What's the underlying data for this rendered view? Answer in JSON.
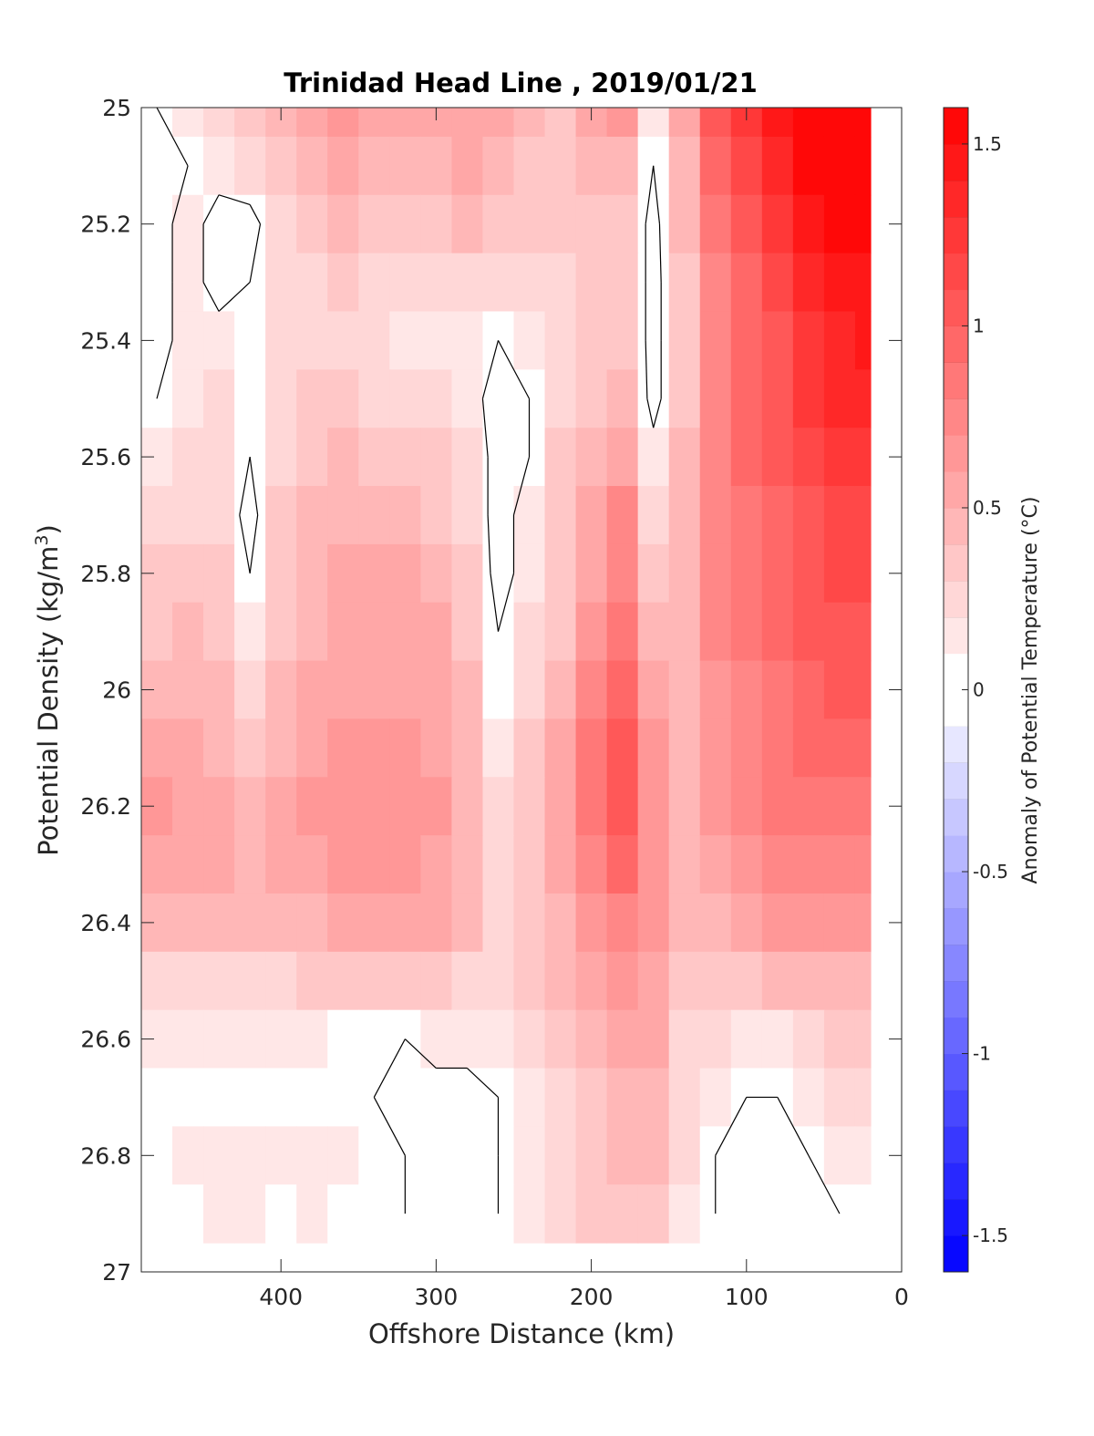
{
  "chart_data": {
    "type": "heatmap",
    "title": "Trinidad Head Line , 2019/01/21",
    "xlabel": "Offshore Distance (km)",
    "ylabel_main": "Potential Density (kg/m",
    "ylabel_sup": "3",
    "ylabel_end": ")",
    "xlim": [
      490,
      0
    ],
    "x_reversed": true,
    "ylim": [
      25,
      27
    ],
    "y_reversed": true,
    "x_ticks": [
      400,
      300,
      200,
      100,
      0
    ],
    "x_tick_labels": [
      "400",
      "300",
      "200",
      "100",
      "0"
    ],
    "y_ticks": [
      25,
      25.2,
      25.4,
      25.6,
      25.8,
      26,
      26.2,
      26.4,
      26.6,
      26.8,
      27
    ],
    "y_tick_labels": [
      "25",
      "25.2",
      "25.4",
      "25.6",
      "25.8",
      "26",
      "26.2",
      "26.4",
      "26.6",
      "26.8",
      "27"
    ],
    "colorbar": {
      "label": "Anomaly of Potential Temperature (°C)",
      "lim": [
        -1.6,
        1.6
      ],
      "step": 0.1,
      "ticks": [
        -1.5,
        -1,
        -0.5,
        0,
        0.5,
        1,
        1.5
      ],
      "tick_labels": [
        "-1.5",
        "-1",
        "-0.5",
        "0",
        "0.5",
        "1",
        "1.5"
      ],
      "low_color": "#0000ff",
      "mid_color": "#ffffff",
      "high_color": "#ff0000"
    },
    "grid_x": [
      480,
      460,
      440,
      420,
      400,
      380,
      360,
      340,
      320,
      300,
      280,
      260,
      240,
      220,
      200,
      180,
      160,
      140,
      120,
      100,
      80,
      60,
      40,
      20
    ],
    "grid_y": [
      25.0,
      25.1,
      25.2,
      25.3,
      25.4,
      25.5,
      25.6,
      25.7,
      25.8,
      25.9,
      26.0,
      26.1,
      26.2,
      26.3,
      26.4,
      26.5,
      26.6,
      26.7,
      26.8,
      26.9
    ],
    "anomaly": [
      [
        0.0,
        0.1,
        0.2,
        0.3,
        0.4,
        0.5,
        0.6,
        0.5,
        0.5,
        0.5,
        0.5,
        0.5,
        0.4,
        0.3,
        0.5,
        0.6,
        0.1,
        0.5,
        1.0,
        1.2,
        1.4,
        1.6,
        1.6,
        1.6
      ],
      [
        -0.1,
        0.0,
        0.1,
        0.2,
        0.3,
        0.4,
        0.5,
        0.4,
        0.4,
        0.4,
        0.5,
        0.4,
        0.3,
        0.3,
        0.4,
        0.4,
        0.0,
        0.4,
        0.9,
        1.1,
        1.3,
        1.5,
        1.6,
        1.6
      ],
      [
        -0.1,
        0.1,
        -0.1,
        -0.1,
        0.2,
        0.3,
        0.4,
        0.3,
        0.3,
        0.3,
        0.4,
        0.3,
        0.3,
        0.3,
        0.3,
        0.3,
        -0.1,
        0.4,
        0.8,
        1.0,
        1.2,
        1.4,
        1.5,
        1.5
      ],
      [
        -0.1,
        0.1,
        -0.1,
        0.0,
        0.2,
        0.2,
        0.3,
        0.2,
        0.2,
        0.2,
        0.2,
        0.2,
        0.2,
        0.2,
        0.3,
        0.3,
        -0.1,
        0.3,
        0.7,
        0.9,
        1.1,
        1.3,
        1.4,
        1.4
      ],
      [
        -0.1,
        0.1,
        0.1,
        0.0,
        0.2,
        0.2,
        0.2,
        0.2,
        0.1,
        0.1,
        0.1,
        0.0,
        0.1,
        0.2,
        0.3,
        0.3,
        -0.1,
        0.3,
        0.7,
        0.9,
        1.0,
        1.2,
        1.3,
        1.4
      ],
      [
        0.0,
        0.1,
        0.2,
        0.0,
        0.2,
        0.3,
        0.3,
        0.2,
        0.2,
        0.2,
        0.1,
        -0.1,
        0.0,
        0.2,
        0.3,
        0.4,
        -0.1,
        0.3,
        0.7,
        0.9,
        1.0,
        1.2,
        1.3,
        1.3
      ],
      [
        0.1,
        0.2,
        0.2,
        0.0,
        0.2,
        0.3,
        0.4,
        0.3,
        0.3,
        0.3,
        0.2,
        -0.1,
        0.0,
        0.3,
        0.4,
        0.5,
        0.1,
        0.4,
        0.7,
        0.9,
        1.0,
        1.1,
        1.2,
        1.2
      ],
      [
        0.2,
        0.2,
        0.2,
        -0.1,
        0.3,
        0.4,
        0.4,
        0.4,
        0.4,
        0.3,
        0.2,
        -0.1,
        0.1,
        0.3,
        0.5,
        0.7,
        0.2,
        0.4,
        0.7,
        0.8,
        0.9,
        1.0,
        1.1,
        1.1
      ],
      [
        0.3,
        0.3,
        0.3,
        0.0,
        0.3,
        0.4,
        0.5,
        0.5,
        0.5,
        0.4,
        0.3,
        -0.1,
        0.1,
        0.3,
        0.5,
        0.7,
        0.3,
        0.4,
        0.7,
        0.8,
        0.9,
        1.0,
        1.1,
        1.1
      ],
      [
        0.3,
        0.4,
        0.3,
        0.1,
        0.3,
        0.4,
        0.5,
        0.5,
        0.5,
        0.5,
        0.3,
        0.0,
        0.2,
        0.3,
        0.6,
        0.8,
        0.4,
        0.4,
        0.7,
        0.8,
        0.9,
        1.0,
        1.0,
        1.0
      ],
      [
        0.4,
        0.4,
        0.4,
        0.2,
        0.4,
        0.5,
        0.5,
        0.5,
        0.5,
        0.5,
        0.4,
        0.0,
        0.2,
        0.4,
        0.7,
        0.9,
        0.5,
        0.4,
        0.6,
        0.7,
        0.8,
        0.9,
        1.0,
        1.0
      ],
      [
        0.5,
        0.5,
        0.4,
        0.3,
        0.4,
        0.5,
        0.6,
        0.6,
        0.6,
        0.5,
        0.4,
        0.1,
        0.3,
        0.5,
        0.8,
        1.0,
        0.6,
        0.4,
        0.6,
        0.7,
        0.8,
        0.9,
        0.9,
        0.9
      ],
      [
        0.6,
        0.5,
        0.5,
        0.4,
        0.5,
        0.6,
        0.6,
        0.6,
        0.6,
        0.6,
        0.4,
        0.2,
        0.3,
        0.5,
        0.8,
        1.0,
        0.6,
        0.4,
        0.6,
        0.7,
        0.8,
        0.8,
        0.8,
        0.8
      ],
      [
        0.5,
        0.5,
        0.5,
        0.4,
        0.5,
        0.5,
        0.6,
        0.6,
        0.6,
        0.5,
        0.4,
        0.2,
        0.3,
        0.5,
        0.7,
        0.9,
        0.6,
        0.4,
        0.5,
        0.6,
        0.7,
        0.7,
        0.7,
        0.7
      ],
      [
        0.4,
        0.4,
        0.4,
        0.4,
        0.4,
        0.4,
        0.5,
        0.5,
        0.5,
        0.5,
        0.4,
        0.2,
        0.3,
        0.4,
        0.6,
        0.7,
        0.6,
        0.4,
        0.4,
        0.5,
        0.6,
        0.6,
        0.6,
        0.6
      ],
      [
        0.2,
        0.2,
        0.2,
        0.2,
        0.2,
        0.3,
        0.3,
        0.3,
        0.3,
        0.3,
        0.2,
        0.2,
        0.3,
        0.4,
        0.5,
        0.6,
        0.5,
        0.3,
        0.3,
        0.3,
        0.4,
        0.4,
        0.4,
        0.4
      ],
      [
        0.1,
        0.1,
        0.1,
        0.1,
        0.1,
        0.1,
        0.0,
        0.0,
        0.0,
        0.1,
        0.1,
        0.1,
        0.2,
        0.3,
        0.4,
        0.5,
        0.5,
        0.2,
        0.2,
        0.1,
        0.1,
        0.2,
        0.3,
        0.3
      ],
      [
        0.0,
        0.0,
        0.0,
        0.0,
        0.0,
        0.0,
        0.0,
        0.0,
        -0.1,
        -0.1,
        -0.1,
        0.0,
        0.1,
        0.2,
        0.3,
        0.4,
        0.4,
        0.2,
        0.1,
        0.0,
        0.0,
        0.1,
        0.2,
        0.2
      ],
      [
        0.0,
        0.1,
        0.1,
        0.1,
        0.1,
        0.1,
        0.1,
        0.0,
        0.0,
        -0.1,
        -0.1,
        0.0,
        0.1,
        0.2,
        0.3,
        0.4,
        0.4,
        0.2,
        0.0,
        -0.1,
        -0.1,
        0.0,
        0.1,
        0.1
      ],
      [
        0.0,
        0.0,
        0.1,
        0.1,
        0.0,
        0.1,
        0.0,
        0.0,
        0.0,
        -0.1,
        -0.1,
        0.0,
        0.1,
        0.2,
        0.3,
        0.3,
        0.3,
        0.1,
        0.0,
        -0.1,
        -0.1,
        -0.1,
        0.0,
        0.0
      ]
    ]
  }
}
